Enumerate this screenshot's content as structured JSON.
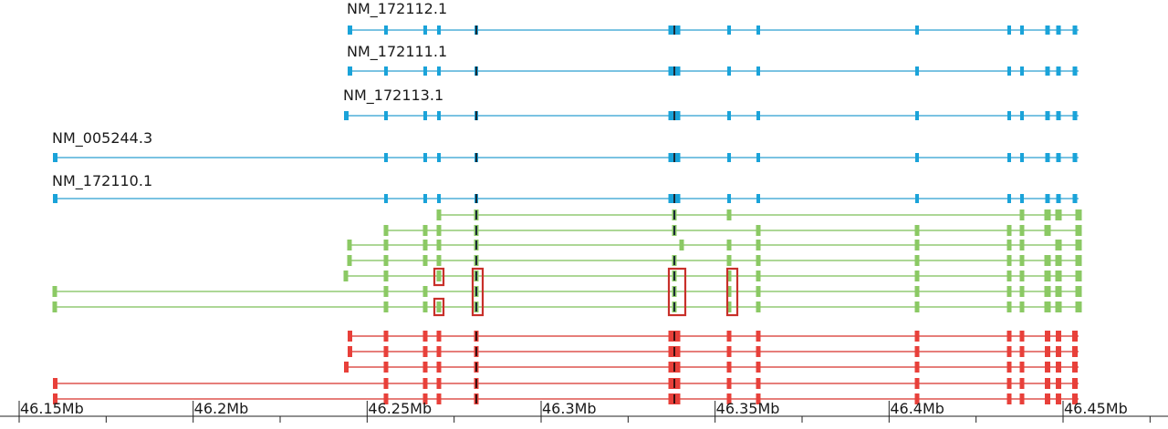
{
  "colors": {
    "reference": "#1aa3d9",
    "reference_line": "#2a9fd0",
    "green": "#8bc964",
    "green_line": "#7cbf58",
    "red": "#e8403a",
    "red_line": "#d8302a",
    "dark_exon": "#1b2a36",
    "highlight_border": "#c8302a",
    "axis": "#222222"
  },
  "axis": {
    "unit": "Mb",
    "ticks": [
      {
        "value": 46.15,
        "label": "46.15Mb"
      },
      {
        "value": 46.2,
        "label": "46.2Mb"
      },
      {
        "value": 46.25,
        "label": "46.25Mb"
      },
      {
        "value": 46.3,
        "label": "46.3Mb"
      },
      {
        "value": 46.35,
        "label": "46.35Mb"
      },
      {
        "value": 46.4,
        "label": "46.4Mb"
      },
      {
        "value": 46.45,
        "label": "46.45Mb"
      }
    ]
  },
  "reference_transcripts": [
    {
      "name": "NM_172112.1"
    },
    {
      "name": "NM_172111.1"
    },
    {
      "name": "NM_172113.1"
    },
    {
      "name": "NM_005244.3"
    },
    {
      "name": "NM_172110.1"
    }
  ]
}
